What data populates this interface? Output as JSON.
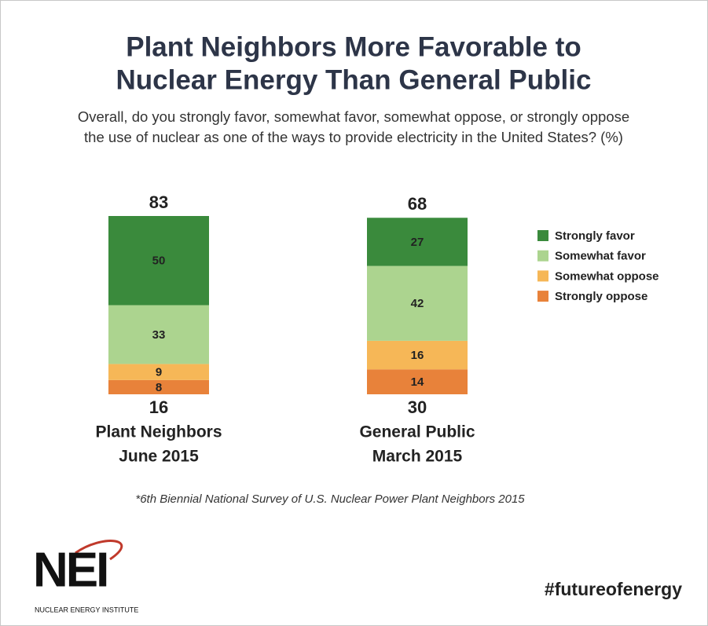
{
  "chart_data": {
    "type": "stacked_bar",
    "title": [
      "Plant Neighbors More Favorable to",
      "Nuclear Energy Than General Public"
    ],
    "subtitle": [
      "Overall, do you strongly favor, somewhat favor, somewhat oppose, or strongly oppose",
      "the use of nuclear as one of the ways to provide electricity in the United States? (%)"
    ],
    "categories": [
      [
        "Plant Neighbors",
        "June 2015"
      ],
      [
        "General Public",
        "March 2015"
      ]
    ],
    "favor_totals": [
      83,
      68
    ],
    "oppose_totals": [
      16,
      30
    ],
    "series": [
      {
        "name": "Strongly favor",
        "color": "#3a8a3c",
        "values": [
          50,
          27
        ]
      },
      {
        "name": "Somewhat favor",
        "color": "#acd48f",
        "values": [
          33,
          42
        ]
      },
      {
        "name": "Somewhat oppose",
        "color": "#f6b757",
        "values": [
          9,
          16
        ]
      },
      {
        "name": "Strongly oppose",
        "color": "#e8823a",
        "values": [
          8,
          14
        ]
      }
    ],
    "legend": "right",
    "footnote": "*6th Biennial National Survey of U.S. Nuclear Power Plant Neighbors 2015",
    "logo": {
      "mark": "NEI",
      "name": "NUCLEAR ENERGY INSTITUTE"
    },
    "hashtag": "#futureofenergy"
  }
}
